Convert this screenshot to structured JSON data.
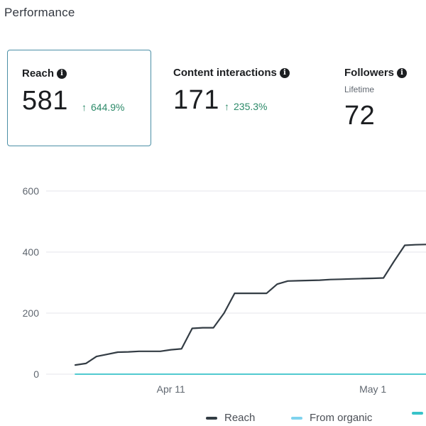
{
  "section": {
    "title": "Performance"
  },
  "metrics": [
    {
      "label": "Reach",
      "value": "581",
      "change": "644.9%",
      "icon": "info-icon"
    },
    {
      "label": "Content interactions",
      "value": "171",
      "change": "235.3%",
      "icon": "info-icon"
    },
    {
      "label": "Followers",
      "sublabel": "Lifetime",
      "value": "72",
      "icon": "info-icon"
    }
  ],
  "colors": {
    "reach": "#333c44",
    "organic": "#7fd3ee",
    "third": "#38c3c9",
    "positive": "#2c8a69",
    "selected_border": "#4b8fa6"
  },
  "chart_data": {
    "type": "line",
    "x_tick_labels": [
      "Apr 11",
      "May 1"
    ],
    "y_ticks": [
      0,
      200,
      400,
      600
    ],
    "ylim": [
      0,
      600
    ],
    "grid": true,
    "legend": "bottom",
    "series": [
      {
        "name": "Reach",
        "values": [
          30,
          35,
          58,
          65,
          72,
          73,
          75,
          75,
          75,
          80,
          83,
          150,
          152,
          152,
          200,
          265,
          265,
          265,
          265,
          295,
          305,
          306,
          307,
          308,
          310,
          311,
          312,
          313,
          314,
          315,
          370,
          422,
          424,
          425
        ]
      },
      {
        "name": "From organic",
        "values": [
          0,
          0,
          0,
          0,
          0,
          0,
          0,
          0,
          0,
          0,
          0,
          0,
          0,
          0,
          0,
          0,
          0,
          0,
          0,
          0,
          0,
          0,
          0,
          0,
          0,
          0,
          0,
          0,
          0,
          0,
          0,
          0,
          0,
          0
        ]
      }
    ]
  }
}
